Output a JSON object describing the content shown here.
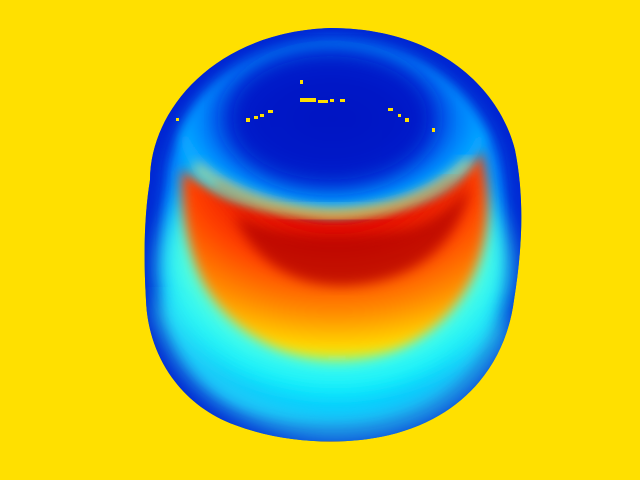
{
  "image": {
    "subject": "depth-map-cup",
    "colormap": "jet",
    "colors": {
      "background": "#FFE000",
      "deep_blue": "#0010C8",
      "blue": "#0050F0",
      "cyan": "#00E8FF",
      "light_cyan": "#40FFF0",
      "yellow_green": "#C8FF40",
      "yellow": "#FFE800",
      "orange": "#FF8000",
      "red": "#F01000",
      "dark_red": "#900000"
    }
  }
}
